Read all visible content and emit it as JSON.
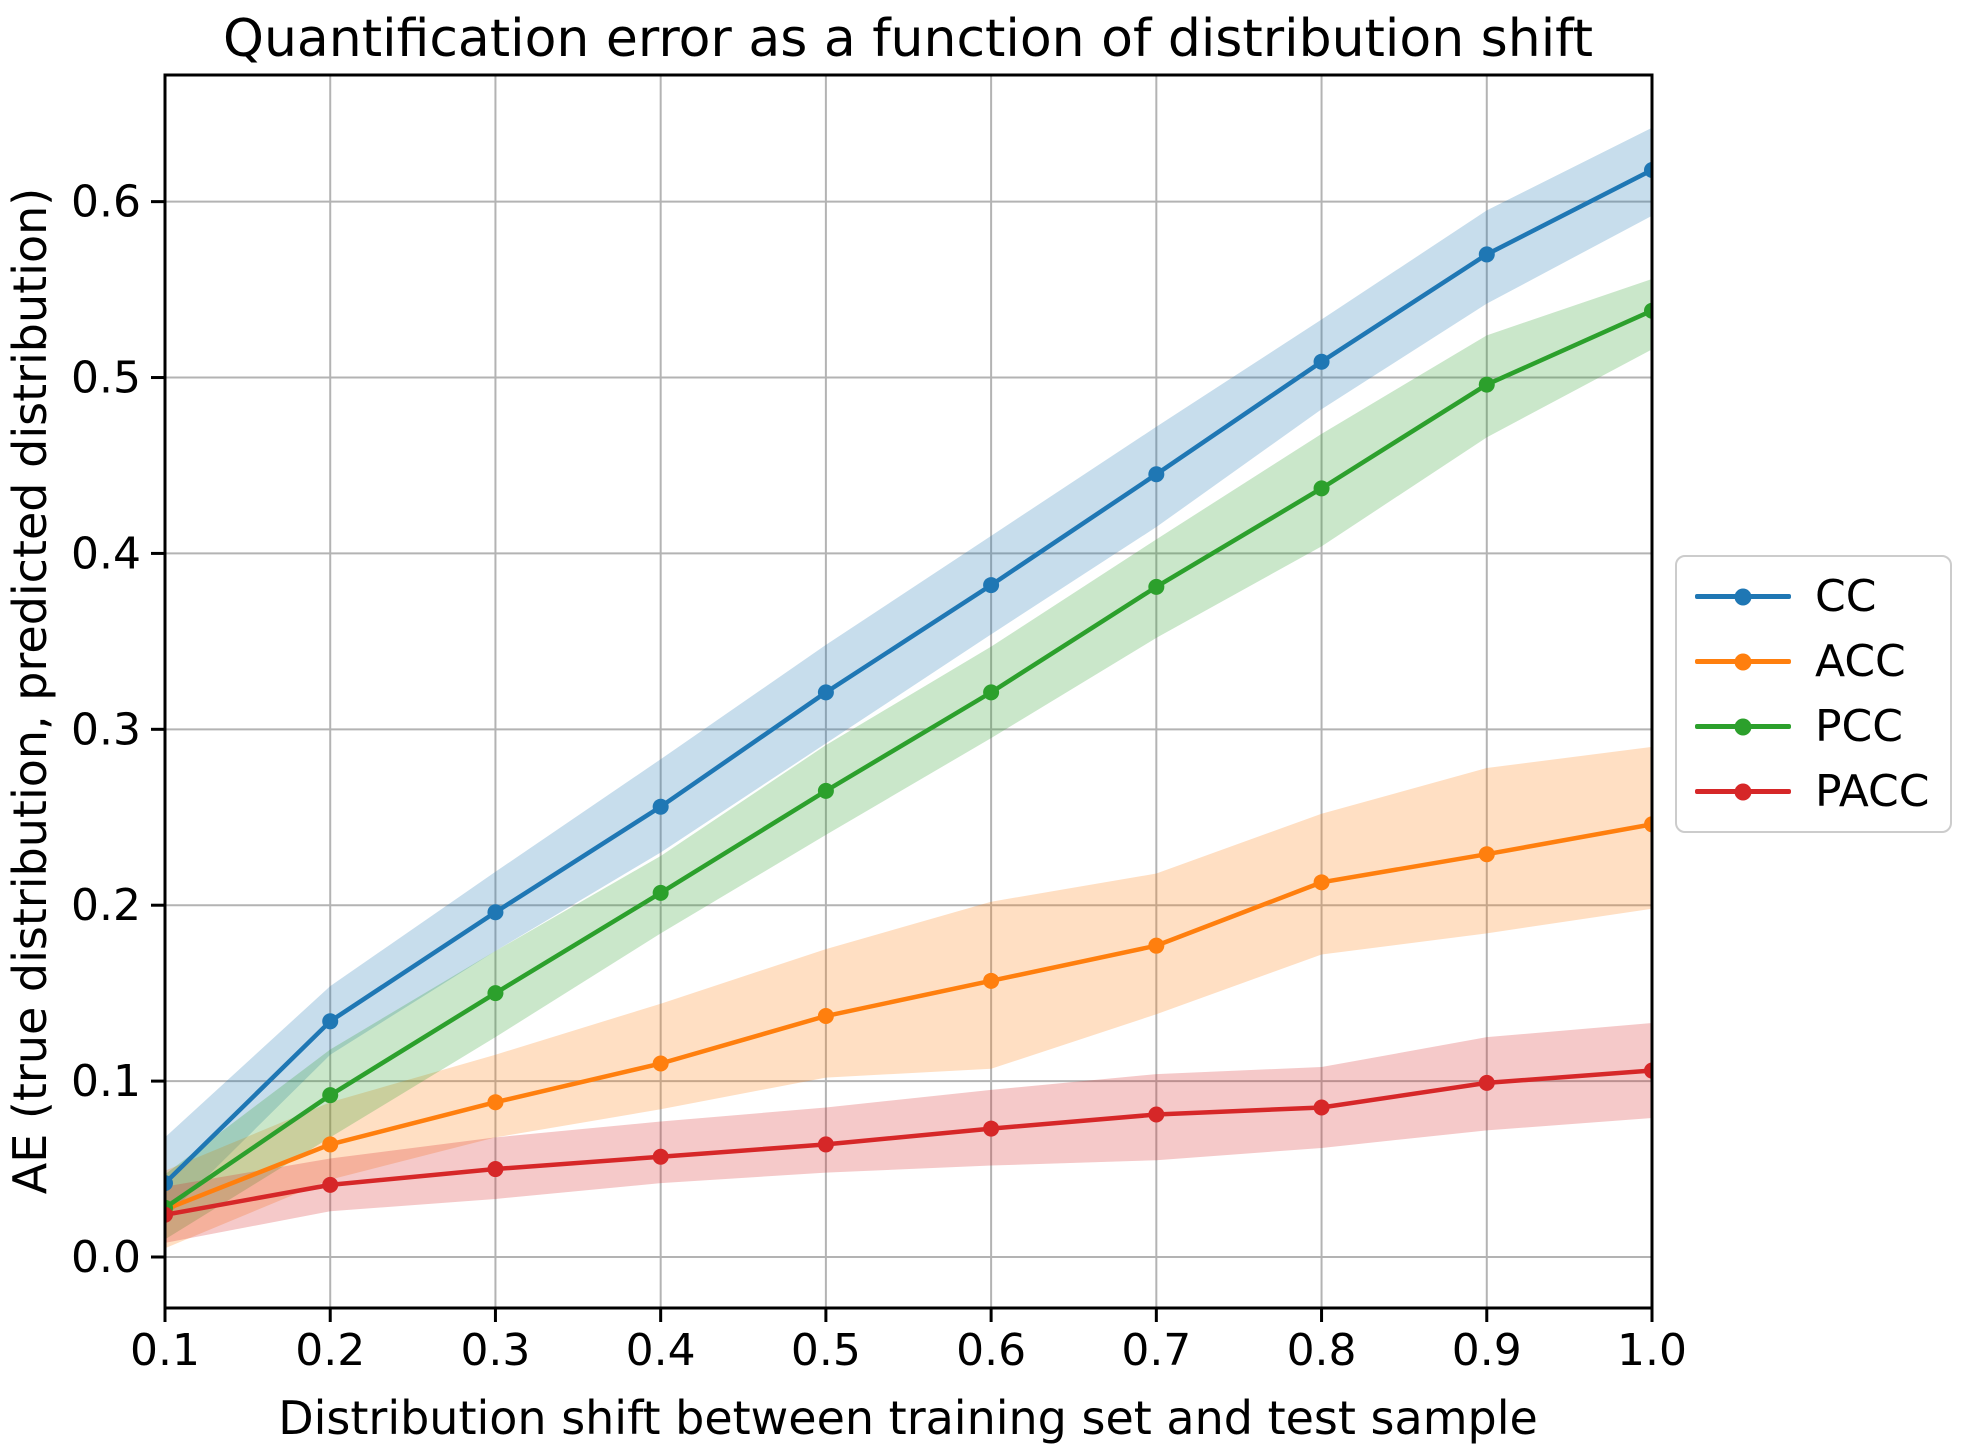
{
  "chart_data": {
    "type": "line",
    "title": "Quantification error as a function of distribution shift",
    "xlabel": "Distribution shift between training set and test sample",
    "ylabel": "AE (true distribution, predicted distribution)",
    "x": [
      0.1,
      0.2,
      0.3,
      0.4,
      0.5,
      0.6,
      0.7,
      0.8,
      0.9,
      1.0
    ],
    "xlim": [
      0.1,
      1.0
    ],
    "ylim": [
      -0.029,
      0.672
    ],
    "xticks": [
      "0.1",
      "0.2",
      "0.3",
      "0.4",
      "0.5",
      "0.6",
      "0.7",
      "0.8",
      "0.9",
      "1.0"
    ],
    "yticks": [
      "0.0",
      "0.1",
      "0.2",
      "0.3",
      "0.4",
      "0.5",
      "0.6"
    ],
    "grid": true,
    "grid_color": "#b3b3b3",
    "legend_position": "right-outside",
    "band_alpha": 0.25,
    "series": [
      {
        "name": "CC",
        "color": "#1f77b4",
        "values": [
          0.042,
          0.134,
          0.196,
          0.256,
          0.321,
          0.382,
          0.445,
          0.509,
          0.57,
          0.618
        ],
        "band_lo": [
          0.022,
          0.115,
          0.174,
          0.23,
          0.292,
          0.354,
          0.415,
          0.482,
          0.542,
          0.592
        ],
        "band_hi": [
          0.068,
          0.154,
          0.219,
          0.283,
          0.348,
          0.41,
          0.472,
          0.533,
          0.595,
          0.642
        ]
      },
      {
        "name": "ACC",
        "color": "#ff7f0e",
        "values": [
          0.027,
          0.064,
          0.088,
          0.11,
          0.137,
          0.157,
          0.177,
          0.213,
          0.229,
          0.246
        ],
        "band_lo": [
          0.005,
          0.044,
          0.068,
          0.084,
          0.102,
          0.107,
          0.138,
          0.172,
          0.184,
          0.198
        ],
        "band_hi": [
          0.049,
          0.088,
          0.115,
          0.144,
          0.175,
          0.202,
          0.218,
          0.252,
          0.278,
          0.29
        ]
      },
      {
        "name": "PCC",
        "color": "#2ca02c",
        "values": [
          0.028,
          0.092,
          0.15,
          0.207,
          0.265,
          0.321,
          0.381,
          0.437,
          0.496,
          0.538
        ],
        "band_lo": [
          0.01,
          0.068,
          0.125,
          0.184,
          0.24,
          0.295,
          0.352,
          0.404,
          0.466,
          0.516
        ],
        "band_hi": [
          0.047,
          0.118,
          0.174,
          0.228,
          0.291,
          0.347,
          0.408,
          0.468,
          0.524,
          0.556
        ]
      },
      {
        "name": "PACC",
        "color": "#d62728",
        "values": [
          0.024,
          0.041,
          0.05,
          0.057,
          0.064,
          0.073,
          0.081,
          0.085,
          0.099,
          0.106
        ],
        "band_lo": [
          0.008,
          0.026,
          0.033,
          0.042,
          0.048,
          0.052,
          0.055,
          0.062,
          0.072,
          0.079
        ],
        "band_hi": [
          0.04,
          0.056,
          0.068,
          0.077,
          0.085,
          0.095,
          0.104,
          0.108,
          0.125,
          0.133
        ]
      }
    ]
  }
}
